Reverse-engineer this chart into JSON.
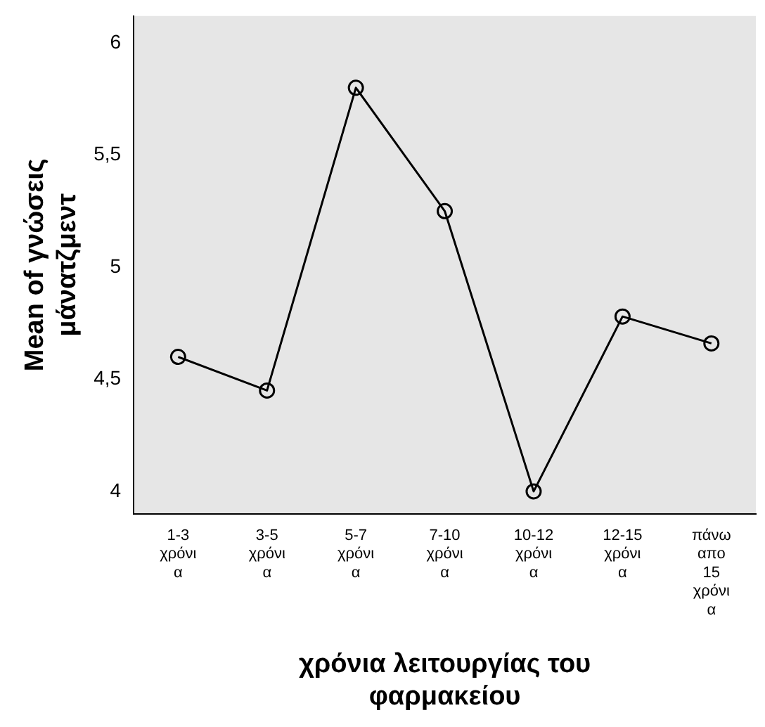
{
  "chart_data": {
    "type": "line",
    "xlabel": "χρόνια λειτουργίας του φαρμακείου",
    "ylabel": "Mean of γνώσεις μάνατζμεντ",
    "categories": [
      "1-3 χρόνια",
      "3-5 χρόνια",
      "5-7 χρόνια",
      "7-10 χρόνια",
      "10-12 χρόνια",
      "12-15 χρόνια",
      "πάνω απο 15 χρόνια"
    ],
    "series": [
      {
        "color": "#000000",
        "values": [
          4.6,
          4.45,
          5.8,
          5.25,
          4.0,
          4.78,
          4.66
        ]
      }
    ],
    "ylim": [
      3.9,
      6.12
    ],
    "yticks": [
      {
        "value": 4,
        "label": "4"
      },
      {
        "value": 4.5,
        "label": "4,5"
      },
      {
        "value": 5,
        "label": "5"
      },
      {
        "value": 5.5,
        "label": "5,5"
      },
      {
        "value": 6,
        "label": "6"
      }
    ],
    "grid": false,
    "legend": false,
    "marker": "circle",
    "line_style": "solid"
  }
}
